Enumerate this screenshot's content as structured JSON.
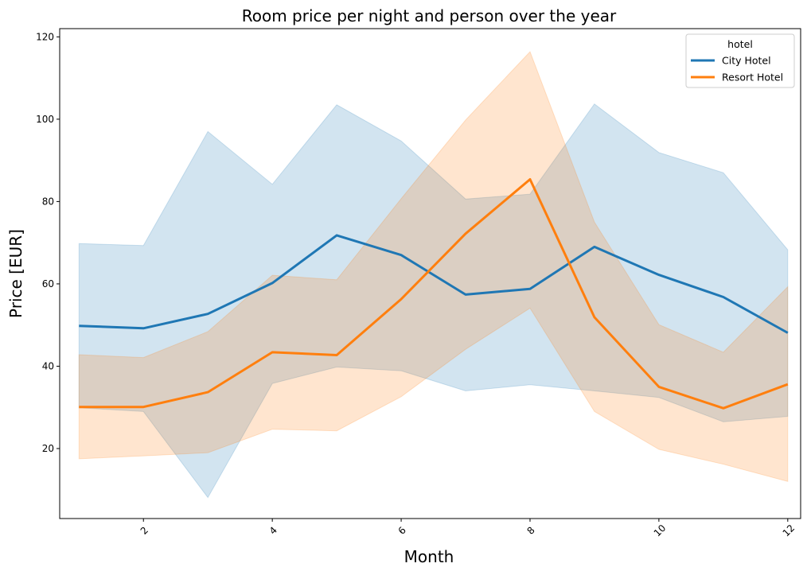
{
  "chart_data": {
    "type": "line",
    "title": "Room price per night and person over the year",
    "xlabel": "Month",
    "ylabel": "Price [EUR]",
    "xlim": [
      0.7,
      12.2
    ],
    "ylim": [
      3,
      122
    ],
    "x": [
      1,
      2,
      3,
      4,
      5,
      6,
      7,
      8,
      9,
      10,
      11,
      12
    ],
    "xticks": [
      2,
      4,
      6,
      8,
      10,
      12
    ],
    "yticks": [
      20,
      40,
      60,
      80,
      100,
      120
    ],
    "grid": false,
    "legend": {
      "title": "hotel",
      "placement": "top-right"
    },
    "series": [
      {
        "name": "City Hotel",
        "color": "#1f77b4",
        "values": [
          49.8,
          49.2,
          52.7,
          60.2,
          71.8,
          67.0,
          57.4,
          58.8,
          69.0,
          62.2,
          56.8,
          48.1
        ],
        "ci_upper": [
          69.8,
          69.3,
          97.0,
          84.2,
          103.5,
          94.7,
          80.6,
          81.8,
          103.7,
          91.9,
          87.0,
          68.3
        ],
        "ci_lower": [
          29.9,
          29.0,
          8.1,
          35.8,
          39.8,
          38.9,
          34.0,
          35.5,
          34.0,
          32.4,
          26.5,
          27.8
        ]
      },
      {
        "name": "Resort Hotel",
        "color": "#ff7f0e",
        "values": [
          30.1,
          30.1,
          33.7,
          43.4,
          42.7,
          56.3,
          72.2,
          85.4,
          51.9,
          35.0,
          29.8,
          35.6
        ],
        "ci_upper": [
          42.8,
          42.1,
          48.4,
          62.1,
          61.0,
          80.7,
          99.8,
          116.4,
          75.0,
          50.1,
          43.4,
          59.3
        ],
        "ci_lower": [
          17.5,
          18.2,
          19.0,
          24.7,
          24.3,
          32.6,
          44.1,
          54.1,
          29.0,
          19.8,
          16.2,
          12.0
        ]
      }
    ]
  }
}
